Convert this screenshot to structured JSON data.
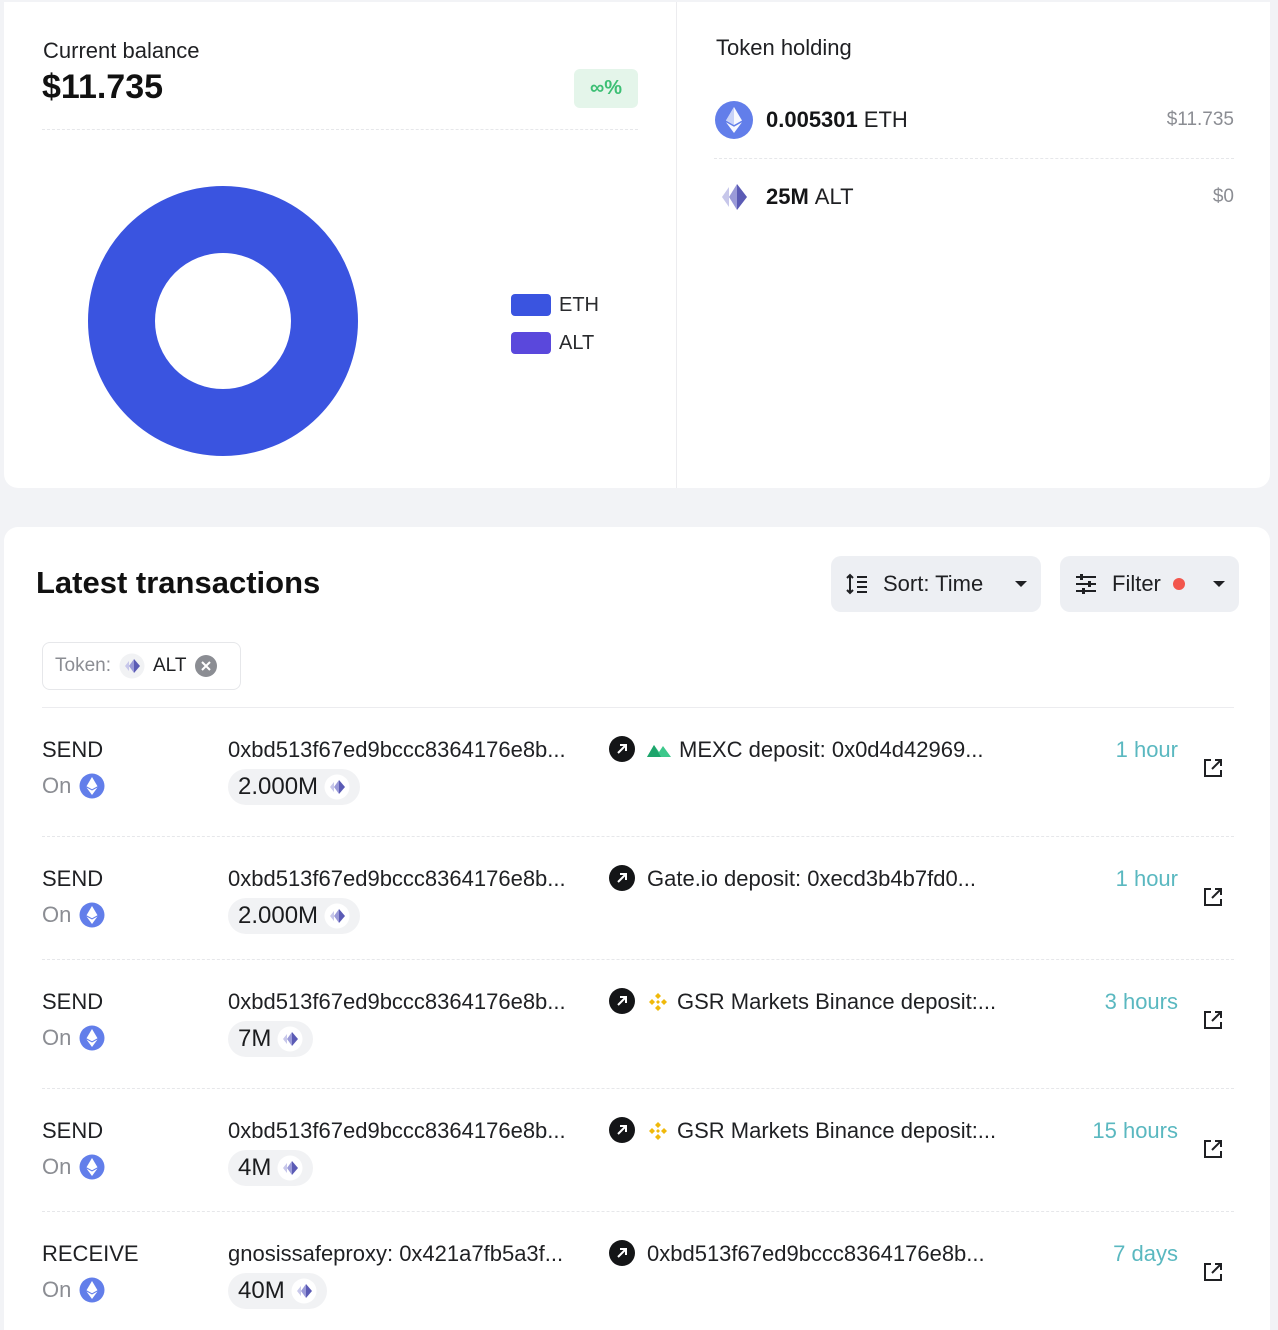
{
  "balance": {
    "label": "Current balance",
    "value": "$11.735",
    "change": "∞%"
  },
  "chart_data": {
    "type": "pie",
    "donut": true,
    "categories": [
      "ETH",
      "ALT"
    ],
    "values": [
      11.735,
      0
    ],
    "colors": [
      "#3a54e0",
      "#5a48dc"
    ],
    "legend": "right"
  },
  "holdings": {
    "title": "Token holding",
    "items": [
      {
        "amount": "0.005301",
        "symbol": "ETH",
        "usd": "$11.735",
        "icon": "eth-icon"
      },
      {
        "amount": "25M",
        "symbol": "ALT",
        "usd": "$0",
        "icon": "alt-icon"
      }
    ]
  },
  "transactions": {
    "title": "Latest transactions",
    "sort_label": "Sort: Time",
    "filter_label": "Filter",
    "chip": {
      "label": "Token:",
      "value": "ALT"
    },
    "rows": [
      {
        "type": "SEND",
        "on": "On",
        "from": "0xbd513f67ed9bccc8364176e8b...",
        "to": "MEXC deposit: 0x0d4d42969...",
        "to_icon": "mexc-icon",
        "amount": "2.000M",
        "time": "1 hour"
      },
      {
        "type": "SEND",
        "on": "On",
        "from": "0xbd513f67ed9bccc8364176e8b...",
        "to": "Gate.io deposit: 0xecd3b4b7fd0...",
        "to_icon": "",
        "amount": "2.000M",
        "time": "1 hour"
      },
      {
        "type": "SEND",
        "on": "On",
        "from": "0xbd513f67ed9bccc8364176e8b...",
        "to": "GSR Markets Binance deposit:...",
        "to_icon": "binance-icon",
        "amount": "7M",
        "time": "3 hours"
      },
      {
        "type": "SEND",
        "on": "On",
        "from": "0xbd513f67ed9bccc8364176e8b...",
        "to": "GSR Markets Binance deposit:...",
        "to_icon": "binance-icon",
        "amount": "4M",
        "time": "15 hours"
      },
      {
        "type": "RECEIVE",
        "on": "On",
        "from": "gnosissafeproxy: 0x421a7fb5a3f...",
        "to": "0xbd513f67ed9bccc8364176e8b...",
        "to_icon": "",
        "amount": "40M",
        "time": "7 days"
      }
    ]
  }
}
